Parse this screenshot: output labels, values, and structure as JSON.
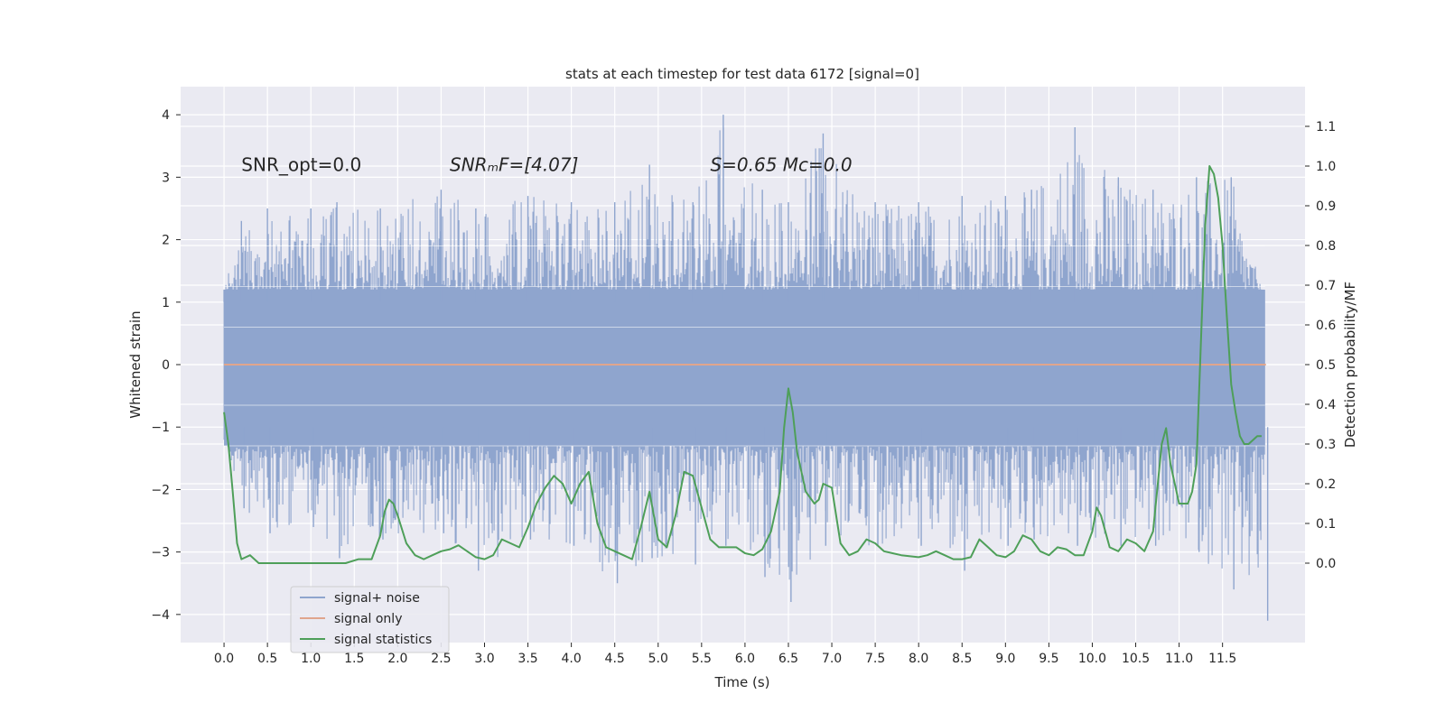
{
  "chart_data": {
    "type": "line",
    "title": "stats at each timestep for test data 6172 [signal=0]",
    "xlabel": "Time (s)",
    "ylabel": "Whitened strain",
    "y2label": "Detection probability/MF",
    "xlim": [
      -0.5,
      12.45
    ],
    "ylim": [
      -4.45,
      4.45
    ],
    "y2lim": [
      -0.2,
      1.2
    ],
    "xticks": [
      0.0,
      0.5,
      1.0,
      1.5,
      2.0,
      2.5,
      3.0,
      3.5,
      4.0,
      4.5,
      5.0,
      5.5,
      6.0,
      6.5,
      7.0,
      7.5,
      8.0,
      8.5,
      9.0,
      9.5,
      10.0,
      10.5,
      11.0,
      11.5
    ],
    "xtick_labels": [
      "0.0",
      "0.5",
      "1.0",
      "1.5",
      "2.0",
      "2.5",
      "3.0",
      "3.5",
      "4.0",
      "4.5",
      "5.0",
      "5.5",
      "6.0",
      "6.5",
      "7.0",
      "7.5",
      "8.0",
      "8.5",
      "9.0",
      "9.5",
      "10.0",
      "10.5",
      "11.0",
      "11.5"
    ],
    "yticks": [
      -4,
      -3,
      -2,
      -1,
      0,
      1,
      2,
      3,
      4
    ],
    "ytick_labels": [
      "−4",
      "−3",
      "−2",
      "−1",
      "0",
      "1",
      "2",
      "3",
      "4"
    ],
    "y2ticks": [
      0.0,
      0.1,
      0.2,
      0.3,
      0.4,
      0.5,
      0.6,
      0.7,
      0.8,
      0.9,
      1.0,
      1.1
    ],
    "y2tick_labels": [
      "0.0",
      "0.1",
      "0.2",
      "0.3",
      "0.4",
      "0.5",
      "0.6",
      "0.7",
      "0.8",
      "0.9",
      "1.0",
      "1.1"
    ],
    "grid": true,
    "legend_position": "lower-left",
    "annotations": [
      {
        "x": 0.2,
        "y": 3.2,
        "text": "SNR_opt=0.0"
      },
      {
        "x": 2.6,
        "y": 3.2,
        "text": "SNRₘF=[4.07]"
      },
      {
        "x": 5.6,
        "y": 3.2,
        "text": "S=0.65   Mᴄ=0.0"
      }
    ],
    "series": [
      {
        "name": "signal+ noise",
        "axis": "left",
        "color": "#8fa5ce",
        "noise_envelope": {
          "x": [
            0.0,
            0.2,
            0.5,
            1.0,
            1.3,
            1.8,
            2.5,
            2.9,
            3.5,
            4.0,
            4.5,
            4.9,
            5.4,
            5.75,
            6.2,
            6.5,
            6.9,
            7.5,
            8.0,
            8.5,
            9.0,
            9.3,
            9.8,
            10.3,
            10.7,
            11.2,
            11.6,
            11.99
          ],
          "upper": [
            1.2,
            2.3,
            2.5,
            2.5,
            2.6,
            2.5,
            2.8,
            2.5,
            2.7,
            2.6,
            2.6,
            3.2,
            2.6,
            4.0,
            2.8,
            2.6,
            3.7,
            2.6,
            2.6,
            2.7,
            2.7,
            2.8,
            3.8,
            3.0,
            2.8,
            3.0,
            3.0,
            1.0
          ],
          "lower": [
            -1.1,
            -2.3,
            -2.7,
            -2.6,
            -3.1,
            -2.8,
            -2.7,
            -3.3,
            -2.8,
            -2.9,
            -3.5,
            -3.1,
            -3.2,
            -2.9,
            -3.4,
            -3.8,
            -2.9,
            -2.9,
            -2.9,
            -3.3,
            -2.9,
            -2.8,
            -2.9,
            -2.9,
            -2.9,
            -3.0,
            -3.6,
            -4.1
          ]
        }
      },
      {
        "name": "signal only",
        "axis": "left",
        "color": "#e0a58c",
        "x": [
          0.0,
          12.0
        ],
        "y": [
          0.0,
          0.0
        ]
      },
      {
        "name": "signal statistics",
        "axis": "right",
        "color": "#4e9f59",
        "x": [
          0.0,
          0.05,
          0.1,
          0.15,
          0.2,
          0.3,
          0.4,
          0.5,
          0.6,
          0.8,
          1.0,
          1.2,
          1.4,
          1.55,
          1.7,
          1.8,
          1.85,
          1.9,
          1.95,
          2.0,
          2.1,
          2.2,
          2.3,
          2.4,
          2.5,
          2.6,
          2.7,
          2.8,
          2.9,
          3.0,
          3.1,
          3.2,
          3.3,
          3.4,
          3.5,
          3.6,
          3.7,
          3.8,
          3.9,
          4.0,
          4.1,
          4.2,
          4.3,
          4.4,
          4.5,
          4.6,
          4.7,
          4.8,
          4.9,
          5.0,
          5.1,
          5.2,
          5.3,
          5.4,
          5.5,
          5.6,
          5.7,
          5.8,
          5.9,
          6.0,
          6.1,
          6.2,
          6.3,
          6.4,
          6.45,
          6.5,
          6.55,
          6.6,
          6.7,
          6.8,
          6.85,
          6.9,
          7.0,
          7.05,
          7.1,
          7.2,
          7.3,
          7.4,
          7.5,
          7.6,
          7.7,
          7.8,
          8.0,
          8.1,
          8.2,
          8.3,
          8.4,
          8.5,
          8.6,
          8.7,
          8.8,
          8.9,
          9.0,
          9.1,
          9.2,
          9.3,
          9.4,
          9.5,
          9.6,
          9.7,
          9.8,
          9.9,
          10.0,
          10.05,
          10.1,
          10.2,
          10.3,
          10.4,
          10.5,
          10.6,
          10.7,
          10.8,
          10.85,
          10.9,
          11.0,
          11.05,
          11.1,
          11.15,
          11.2,
          11.25,
          11.3,
          11.35,
          11.4,
          11.45,
          11.5,
          11.55,
          11.6,
          11.65,
          11.7,
          11.75,
          11.8,
          11.85,
          11.9,
          11.95
        ],
        "y": [
          0.38,
          0.3,
          0.18,
          0.05,
          0.01,
          0.02,
          0.0,
          0.0,
          0.0,
          0.0,
          0.0,
          0.0,
          0.0,
          0.01,
          0.01,
          0.07,
          0.13,
          0.16,
          0.15,
          0.12,
          0.05,
          0.02,
          0.01,
          0.02,
          0.03,
          0.035,
          0.045,
          0.03,
          0.015,
          0.01,
          0.02,
          0.06,
          0.05,
          0.04,
          0.09,
          0.15,
          0.19,
          0.22,
          0.2,
          0.15,
          0.2,
          0.23,
          0.1,
          0.04,
          0.03,
          0.02,
          0.01,
          0.09,
          0.18,
          0.06,
          0.04,
          0.12,
          0.23,
          0.22,
          0.14,
          0.06,
          0.04,
          0.04,
          0.04,
          0.025,
          0.02,
          0.035,
          0.08,
          0.18,
          0.34,
          0.44,
          0.38,
          0.28,
          0.18,
          0.15,
          0.16,
          0.2,
          0.19,
          0.12,
          0.05,
          0.02,
          0.03,
          0.06,
          0.05,
          0.03,
          0.025,
          0.02,
          0.015,
          0.02,
          0.03,
          0.02,
          0.01,
          0.01,
          0.015,
          0.06,
          0.04,
          0.02,
          0.015,
          0.03,
          0.07,
          0.06,
          0.03,
          0.02,
          0.04,
          0.035,
          0.02,
          0.02,
          0.08,
          0.14,
          0.12,
          0.04,
          0.03,
          0.06,
          0.05,
          0.03,
          0.08,
          0.3,
          0.34,
          0.25,
          0.15,
          0.15,
          0.15,
          0.18,
          0.25,
          0.55,
          0.85,
          1.0,
          0.98,
          0.92,
          0.8,
          0.62,
          0.45,
          0.38,
          0.32,
          0.3,
          0.3,
          0.31,
          0.32,
          0.32
        ]
      }
    ]
  }
}
